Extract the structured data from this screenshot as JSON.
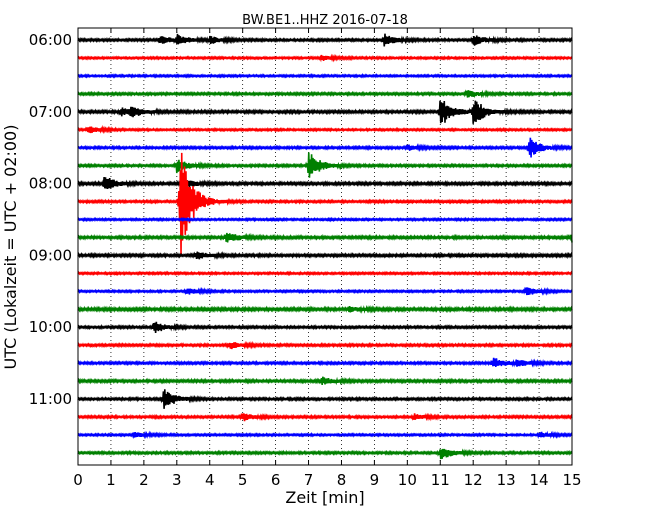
{
  "chart_data": {
    "type": "line",
    "title": "BW.BE1..HHZ 2016-07-18",
    "xlabel": "Zeit  [min]",
    "ylabel": "UTC (Lokalzeit = UTC + 02:00)",
    "xlim": [
      0,
      15
    ],
    "x_ticks": [
      "0",
      "1",
      "2",
      "3",
      "4",
      "5",
      "6",
      "7",
      "8",
      "9",
      "10",
      "11",
      "12",
      "13",
      "14",
      "15"
    ],
    "y_ticks": [
      "06:00",
      "07:00",
      "08:00",
      "09:00",
      "10:00",
      "11:00"
    ],
    "grid": "vertical dotted",
    "trace_interval_min": 15,
    "colors": [
      "#000000",
      "#ff0000",
      "#0000ff",
      "#008000"
    ],
    "series": [
      {
        "start": "06:00",
        "noise": 0.7,
        "events": [
          {
            "t": 2.5,
            "a": 4.5
          },
          {
            "t": 3.0,
            "a": 5
          },
          {
            "t": 4.0,
            "a": 4
          },
          {
            "t": 9.3,
            "a": 6
          },
          {
            "t": 12.0,
            "a": 6
          }
        ]
      },
      {
        "start": "06:15",
        "noise": 0.6,
        "events": [
          {
            "t": 7.4,
            "a": 3
          }
        ]
      },
      {
        "start": "06:30",
        "noise": 0.6,
        "events": []
      },
      {
        "start": "06:45",
        "noise": 0.7,
        "events": [
          {
            "t": 11.8,
            "a": 4
          }
        ]
      },
      {
        "start": "07:00",
        "noise": 0.8,
        "events": [
          {
            "t": 1.3,
            "a": 4.5
          },
          {
            "t": 1.6,
            "a": 5
          },
          {
            "t": 11.0,
            "a": 16
          },
          {
            "t": 12.0,
            "a": 14
          }
        ]
      },
      {
        "start": "07:15",
        "noise": 0.6,
        "events": [
          {
            "t": 0.3,
            "a": 4
          }
        ]
      },
      {
        "start": "07:30",
        "noise": 0.7,
        "events": [
          {
            "t": 10.0,
            "a": 3
          },
          {
            "t": 13.7,
            "a": 11
          }
        ]
      },
      {
        "start": "07:45",
        "noise": 0.7,
        "events": [
          {
            "t": 3.0,
            "a": 7
          },
          {
            "t": 7.0,
            "a": 16
          }
        ]
      },
      {
        "start": "08:00",
        "noise": 0.8,
        "events": [
          {
            "t": 0.8,
            "a": 8
          },
          {
            "t": 3.3,
            "a": 4
          }
        ]
      },
      {
        "start": "08:15",
        "noise": 0.7,
        "events": [
          {
            "t": 3.1,
            "a": 60
          }
        ]
      },
      {
        "start": "08:30",
        "noise": 0.6,
        "events": []
      },
      {
        "start": "08:45",
        "noise": 0.8,
        "events": [
          {
            "t": 4.5,
            "a": 6
          },
          {
            "t": 15.0,
            "a": 5
          }
        ]
      },
      {
        "start": "09:00",
        "noise": 0.8,
        "events": [
          {
            "t": 3.6,
            "a": 5
          }
        ]
      },
      {
        "start": "09:15",
        "noise": 0.6,
        "events": []
      },
      {
        "start": "09:30",
        "noise": 0.6,
        "events": [
          {
            "t": 3.3,
            "a": 4
          },
          {
            "t": 13.6,
            "a": 5
          }
        ]
      },
      {
        "start": "09:45",
        "noise": 0.9,
        "events": [
          {
            "t": 8.2,
            "a": 3
          }
        ]
      },
      {
        "start": "10:00",
        "noise": 0.7,
        "events": [
          {
            "t": 2.3,
            "a": 6
          }
        ]
      },
      {
        "start": "10:15",
        "noise": 0.7,
        "events": [
          {
            "t": 4.6,
            "a": 4
          }
        ]
      },
      {
        "start": "10:30",
        "noise": 0.7,
        "events": [
          {
            "t": 12.6,
            "a": 6
          },
          {
            "t": 13.3,
            "a": 4
          }
        ]
      },
      {
        "start": "10:45",
        "noise": 0.8,
        "events": [
          {
            "t": 7.4,
            "a": 4
          }
        ]
      },
      {
        "start": "11:00",
        "noise": 0.7,
        "events": [
          {
            "t": 2.6,
            "a": 11
          }
        ]
      },
      {
        "start": "11:15",
        "noise": 0.7,
        "events": [
          {
            "t": 5.0,
            "a": 4
          },
          {
            "t": 10.2,
            "a": 3
          }
        ]
      },
      {
        "start": "11:30",
        "noise": 0.6,
        "events": [
          {
            "t": 1.7,
            "a": 3
          },
          {
            "t": 14.0,
            "a": 3
          }
        ]
      },
      {
        "start": "11:45",
        "noise": 0.7,
        "events": [
          {
            "t": 11.0,
            "a": 7
          }
        ]
      }
    ]
  }
}
